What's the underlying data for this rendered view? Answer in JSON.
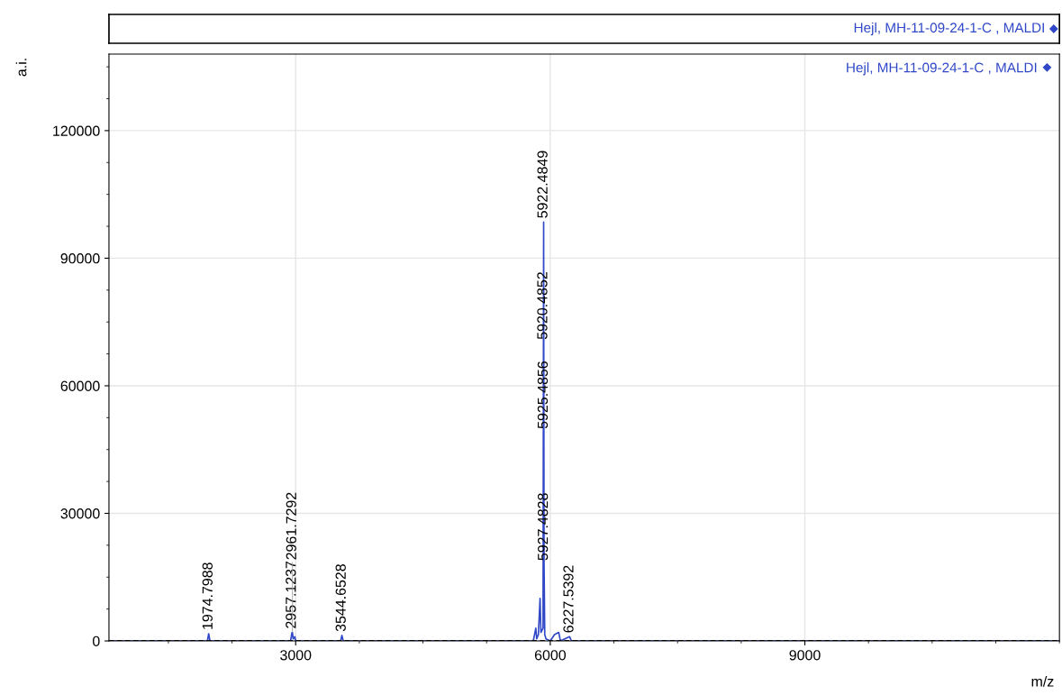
{
  "chart_data": [
    {
      "type": "other",
      "annotations": [
        "Hejl, MH-11-09-24-1-C , MALDI"
      ]
    },
    {
      "type": "line",
      "xlabel": "m/z",
      "ylabel": "a.i.",
      "xlim": [
        800,
        12000
      ],
      "ylim": [
        0,
        138000
      ],
      "xticks": [
        3000,
        6000,
        9000
      ],
      "yticks": [
        0,
        30000,
        60000,
        90000,
        120000
      ],
      "grid": true,
      "legend": "top right",
      "series": [
        {
          "name": "Hejl, MH-11-09-24-1-C , MALDI",
          "color": "#3048c8",
          "x": [
            800,
            1960,
            1975,
            1990,
            2940,
            2950,
            2957,
            2962,
            2970,
            2990,
            3000,
            3530,
            3545,
            3560,
            5800,
            5830,
            5840,
            5860,
            5880,
            5890,
            5915,
            5920,
            5922,
            5925,
            5927,
            5935,
            5950,
            6000,
            6050,
            6100,
            6120,
            6228,
            6250,
            12000
          ],
          "values": [
            0,
            0,
            1700,
            0,
            0,
            1200,
            2000,
            2000,
            500,
            1000,
            0,
            0,
            1300,
            0,
            0,
            3000,
            500,
            1500,
            10000,
            2000,
            3000,
            70000,
            98500,
            49000,
            18000,
            1500,
            500,
            0,
            1500,
            2000,
            0,
            1000,
            0,
            0
          ]
        }
      ],
      "ref_lines": [
        {
          "axis": "y",
          "value": 0,
          "color": "#000000",
          "line_style": "dashed"
        }
      ],
      "annotations": [
        {
          "text": "1974.7988",
          "x": 1975,
          "y": 1700
        },
        {
          "text": "2957.1237",
          "x": 2957,
          "y": 2000
        },
        {
          "text": "2961.7292",
          "x": 2962,
          "y": 2000
        },
        {
          "text": "3544.6528",
          "x": 3545,
          "y": 1300
        },
        {
          "text": "5927.4828",
          "x": 5927,
          "y": 18000
        },
        {
          "text": "5925.4856",
          "x": 5925,
          "y": 49000
        },
        {
          "text": "5920.4852",
          "x": 5920,
          "y": 70000
        },
        {
          "text": "5922.4849",
          "x": 5922,
          "y": 98500
        },
        {
          "text": "6227.5392",
          "x": 6228,
          "y": 1000
        }
      ]
    }
  ]
}
